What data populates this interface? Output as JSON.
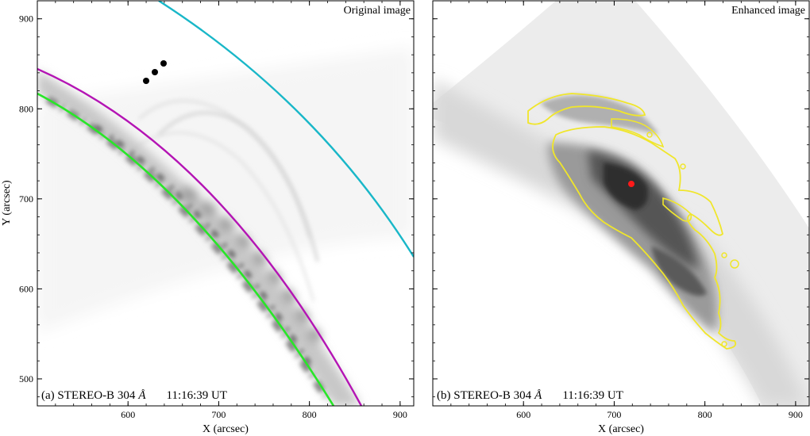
{
  "panels": [
    {
      "id": "a",
      "title": "Original image",
      "caption_prefix": "(a) STEREO-B 304",
      "caption_unit": "Å",
      "caption_time": "11:16:39 UT",
      "xlabel": "X (arcsec)",
      "ylabel": "Y (arcsec)",
      "x_ticks": [
        "600",
        "700",
        "800",
        "900"
      ],
      "y_ticks": [
        "500",
        "600",
        "700",
        "800",
        "900"
      ],
      "xlim": [
        500,
        915
      ],
      "ylim": [
        470,
        920
      ],
      "colors": {
        "cyan_arc": "#19b7c8",
        "magenta_arc": "#b414b4",
        "green_arc": "#28e628"
      }
    },
    {
      "id": "b",
      "title": "Enhanced image",
      "caption_prefix": "(b) STEREO-B 304",
      "caption_unit": "Å",
      "caption_time": "11:16:39 UT",
      "xlabel": "X (arcsec)",
      "x_ticks": [
        "600",
        "700",
        "800",
        "900"
      ],
      "xlim": [
        500,
        915
      ],
      "ylim": [
        470,
        920
      ],
      "colors": {
        "contour": "#f0e62a",
        "center_dot": "#ff1a1a"
      }
    }
  ]
}
